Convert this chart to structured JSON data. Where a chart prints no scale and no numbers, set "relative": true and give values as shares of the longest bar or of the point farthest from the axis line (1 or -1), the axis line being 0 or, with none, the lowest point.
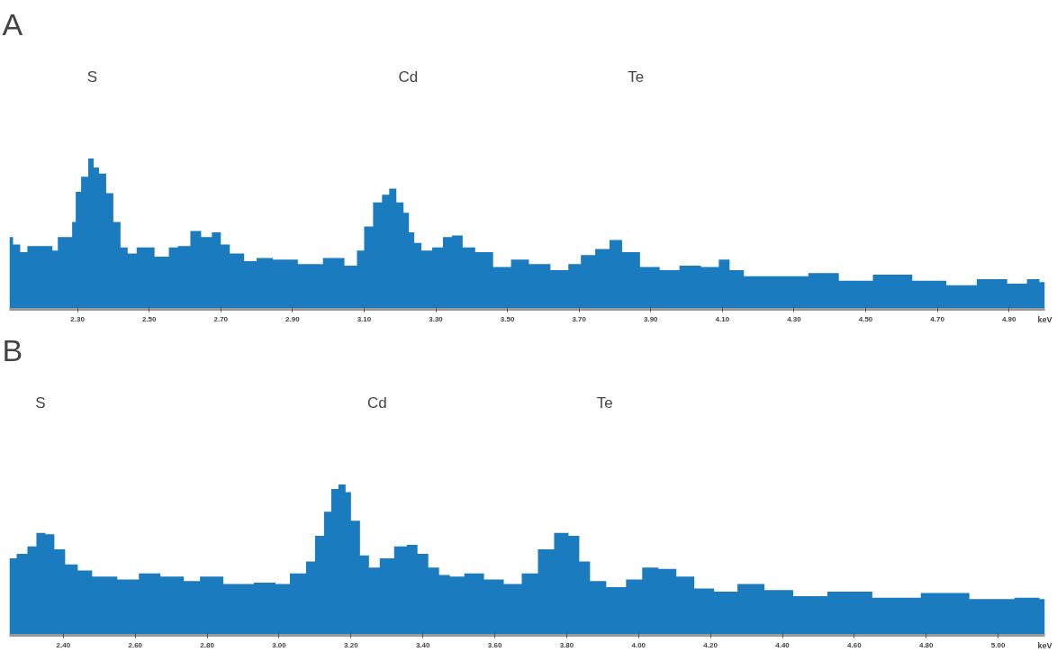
{
  "chart_data": [
    {
      "type": "area",
      "title": "A",
      "xlabel": "keV",
      "relative": true,
      "color": "#1a7bbf",
      "grid": false,
      "tick_labels": "x",
      "xlim": [
        2.11,
        5.0
      ],
      "xticks": [
        {
          "value": 2.3,
          "label": "2.30"
        },
        {
          "value": 2.5,
          "label": "2.50"
        },
        {
          "value": 2.7,
          "label": "2.70"
        },
        {
          "value": 2.9,
          "label": "2.90"
        },
        {
          "value": 3.1,
          "label": "3.10"
        },
        {
          "value": 3.3,
          "label": "3.30"
        },
        {
          "value": 3.5,
          "label": "3.50"
        },
        {
          "value": 3.7,
          "label": "3.70"
        },
        {
          "value": 3.9,
          "label": "3.90"
        },
        {
          "value": 4.1,
          "label": "4.10"
        },
        {
          "value": 4.3,
          "label": "4.30"
        },
        {
          "value": 4.5,
          "label": "4.50"
        },
        {
          "value": 4.7,
          "label": "4.70"
        },
        {
          "value": 4.9,
          "label": "4.90"
        }
      ],
      "annotations": [
        "S",
        "Cd",
        "Te"
      ],
      "x": [
        2.11,
        2.13,
        2.15,
        2.17,
        2.22,
        2.24,
        2.25,
        2.28,
        2.29,
        2.3,
        2.32,
        2.34,
        2.35,
        2.37,
        2.39,
        2.41,
        2.43,
        2.45,
        2.48,
        2.55,
        2.56,
        2.6,
        2.63,
        2.66,
        2.69,
        2.71,
        2.74,
        2.79,
        2.81,
        2.88,
        2.95,
        3.02,
        3.07,
        3.09,
        3.11,
        3.14,
        3.16,
        3.18,
        3.2,
        3.22,
        3.23,
        3.25,
        3.27,
        3.31,
        3.33,
        3.36,
        3.39,
        3.43,
        3.49,
        3.53,
        3.59,
        3.65,
        3.69,
        3.72,
        3.77,
        3.8,
        3.84,
        3.9,
        3.95,
        4.01,
        4.07,
        4.11,
        4.13,
        4.19,
        4.3,
        4.38,
        4.47,
        4.57,
        4.69,
        4.76,
        4.86,
        4.93,
        4.97,
        5.0
      ],
      "values": [
        0.48,
        0.43,
        0.38,
        0.42,
        0.42,
        0.39,
        0.48,
        0.48,
        0.58,
        0.78,
        0.88,
        1.0,
        0.94,
        0.9,
        0.77,
        0.58,
        0.41,
        0.37,
        0.41,
        0.35,
        0.41,
        0.42,
        0.52,
        0.48,
        0.51,
        0.43,
        0.37,
        0.32,
        0.34,
        0.33,
        0.3,
        0.34,
        0.29,
        0.39,
        0.55,
        0.71,
        0.76,
        0.8,
        0.71,
        0.64,
        0.51,
        0.44,
        0.39,
        0.41,
        0.48,
        0.49,
        0.41,
        0.38,
        0.28,
        0.33,
        0.3,
        0.26,
        0.3,
        0.36,
        0.4,
        0.46,
        0.38,
        0.28,
        0.26,
        0.29,
        0.28,
        0.33,
        0.26,
        0.22,
        0.22,
        0.24,
        0.19,
        0.23,
        0.19,
        0.16,
        0.2,
        0.17,
        0.2,
        0.18
      ]
    },
    {
      "type": "area",
      "title": "B",
      "xlabel": "keV",
      "relative": true,
      "color": "#1a7bbf",
      "grid": false,
      "tick_labels": "x",
      "xlim": [
        2.25,
        5.13
      ],
      "xticks": [
        {
          "value": 2.4,
          "label": "2.40"
        },
        {
          "value": 2.6,
          "label": "2.60"
        },
        {
          "value": 2.8,
          "label": "2.80"
        },
        {
          "value": 3.0,
          "label": "3.00"
        },
        {
          "value": 3.2,
          "label": "3.20"
        },
        {
          "value": 3.4,
          "label": "3.40"
        },
        {
          "value": 3.6,
          "label": "3.60"
        },
        {
          "value": 3.8,
          "label": "3.80"
        },
        {
          "value": 4.0,
          "label": "4.00"
        },
        {
          "value": 4.2,
          "label": "4.20"
        },
        {
          "value": 4.4,
          "label": "4.40"
        },
        {
          "value": 4.6,
          "label": "4.60"
        },
        {
          "value": 4.8,
          "label": "4.80"
        },
        {
          "value": 5.0,
          "label": "5.00"
        }
      ],
      "annotations": [
        "S",
        "Cd",
        "Te"
      ],
      "x": [
        2.25,
        2.29,
        2.31,
        2.34,
        2.36,
        2.39,
        2.42,
        2.46,
        2.5,
        2.6,
        2.62,
        2.72,
        2.75,
        2.81,
        2.88,
        2.98,
        3.0,
        3.06,
        3.09,
        3.11,
        3.14,
        3.15,
        3.18,
        3.19,
        3.21,
        3.24,
        3.26,
        3.3,
        3.34,
        3.37,
        3.4,
        3.43,
        3.46,
        3.49,
        3.54,
        3.6,
        3.65,
        3.7,
        3.74,
        3.79,
        3.82,
        3.85,
        3.88,
        3.94,
        3.99,
        4.03,
        4.08,
        4.13,
        4.18,
        4.24,
        4.31,
        4.39,
        4.47,
        4.58,
        4.72,
        4.85,
        4.99,
        5.1,
        5.13
      ],
      "values": [
        0.51,
        0.54,
        0.59,
        0.68,
        0.67,
        0.57,
        0.47,
        0.43,
        0.39,
        0.37,
        0.41,
        0.39,
        0.36,
        0.39,
        0.34,
        0.35,
        0.34,
        0.41,
        0.49,
        0.66,
        0.82,
        0.97,
        1.0,
        0.95,
        0.76,
        0.53,
        0.45,
        0.51,
        0.59,
        0.6,
        0.54,
        0.45,
        0.4,
        0.39,
        0.41,
        0.37,
        0.34,
        0.41,
        0.57,
        0.68,
        0.66,
        0.49,
        0.36,
        0.32,
        0.37,
        0.45,
        0.44,
        0.39,
        0.31,
        0.29,
        0.34,
        0.3,
        0.26,
        0.29,
        0.25,
        0.28,
        0.24,
        0.25,
        0.24
      ]
    }
  ]
}
